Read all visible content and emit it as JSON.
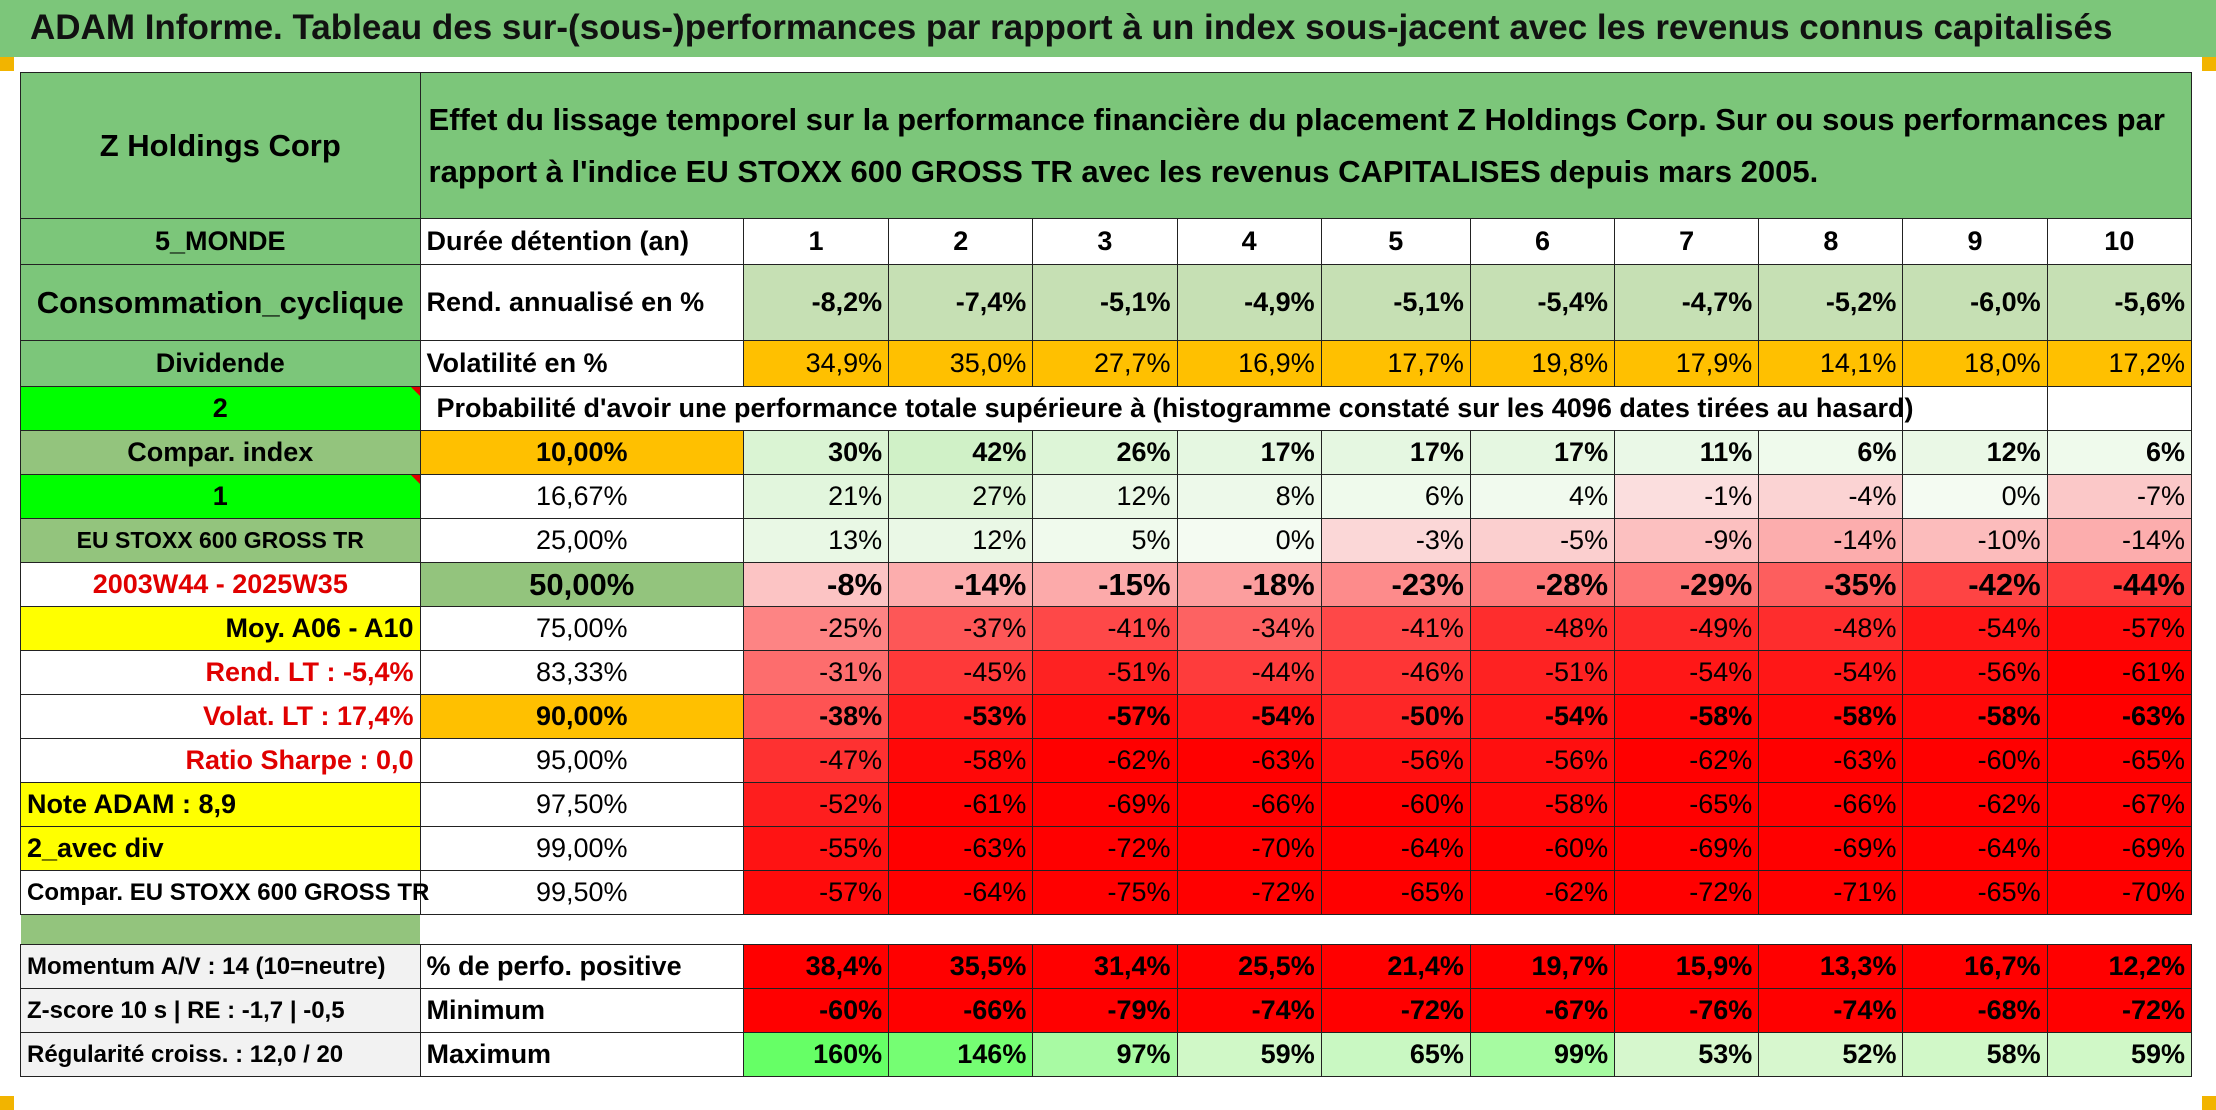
{
  "header": {
    "title": "ADAM Informe. Tableau des sur-(sous-)performances par rapport à un index sous-jacent avec les revenus connus capitalisés"
  },
  "company": "Z Holdings Corp",
  "description": "Effet du lissage temporel sur la performance financière du placement Z Holdings Corp. Sur ou sous performances par rapport à l'indice EU STOXX 600 GROSS TR avec les revenus CAPITALISES depuis mars 2005.",
  "left": {
    "region": "5_MONDE",
    "sector": "Consommation_cyclique",
    "dividend": "Dividende",
    "two": "2",
    "compar_index": "Compar. index",
    "one": "1",
    "index_name": "EU STOXX 600 GROSS TR",
    "period": "2003W44 - 2025W35",
    "moy": "Moy. A06 - A10",
    "rend_lt": "Rend. LT :   -5,4%",
    "volat_lt": "Volat. LT :   17,4%",
    "sharpe": "Ratio Sharpe :    0,0",
    "note": "Note ADAM : 8,9",
    "avec_div": "2_avec div",
    "compar_long": "Compar. EU STOXX 600 GROSS TR",
    "momentum": "Momentum A/V : 14 (10=neutre)",
    "zscore": "Z-score 10 s | RE : -1,7 | -0,5",
    "regularite": "Régularité croiss. : 12,0 / 20"
  },
  "labels": {
    "duree": "Durée détention (an)",
    "rend": "Rend. annualisé en %",
    "volat": "Volatilité en %",
    "proba": "Probabilité d'avoir une performance totale supérieure à (histogramme constaté sur les 4096 dates tirées au hasard)",
    "pos": "% de perfo. positive",
    "min": "Minimum",
    "max": "Maximum"
  },
  "years": [
    "1",
    "2",
    "3",
    "4",
    "5",
    "6",
    "7",
    "8",
    "9",
    "10"
  ],
  "rend": [
    "-8,2%",
    "-7,4%",
    "-5,1%",
    "-4,9%",
    "-5,1%",
    "-5,4%",
    "-4,7%",
    "-5,2%",
    "-6,0%",
    "-5,6%"
  ],
  "volat": [
    "34,9%",
    "35,0%",
    "27,7%",
    "16,9%",
    "17,7%",
    "19,8%",
    "17,9%",
    "14,1%",
    "18,0%",
    "17,2%"
  ],
  "percentile_rows": [
    {
      "label": "10,00%",
      "values": [
        "30%",
        "42%",
        "26%",
        "17%",
        "17%",
        "17%",
        "11%",
        "6%",
        "12%",
        "6%"
      ]
    },
    {
      "label": "16,67%",
      "values": [
        "21%",
        "27%",
        "12%",
        "8%",
        "6%",
        "4%",
        "-1%",
        "-4%",
        "0%",
        "-7%"
      ]
    },
    {
      "label": "25,00%",
      "values": [
        "13%",
        "12%",
        "5%",
        "0%",
        "-3%",
        "-5%",
        "-9%",
        "-14%",
        "-10%",
        "-14%"
      ]
    },
    {
      "label": "50,00%",
      "values": [
        "-8%",
        "-14%",
        "-15%",
        "-18%",
        "-23%",
        "-28%",
        "-29%",
        "-35%",
        "-42%",
        "-44%"
      ]
    },
    {
      "label": "75,00%",
      "values": [
        "-25%",
        "-37%",
        "-41%",
        "-34%",
        "-41%",
        "-48%",
        "-49%",
        "-48%",
        "-54%",
        "-57%"
      ]
    },
    {
      "label": "83,33%",
      "values": [
        "-31%",
        "-45%",
        "-51%",
        "-44%",
        "-46%",
        "-51%",
        "-54%",
        "-54%",
        "-56%",
        "-61%"
      ]
    },
    {
      "label": "90,00%",
      "values": [
        "-38%",
        "-53%",
        "-57%",
        "-54%",
        "-50%",
        "-54%",
        "-58%",
        "-58%",
        "-58%",
        "-63%"
      ]
    },
    {
      "label": "95,00%",
      "values": [
        "-47%",
        "-58%",
        "-62%",
        "-63%",
        "-56%",
        "-56%",
        "-62%",
        "-63%",
        "-60%",
        "-65%"
      ]
    },
    {
      "label": "97,50%",
      "values": [
        "-52%",
        "-61%",
        "-69%",
        "-66%",
        "-60%",
        "-58%",
        "-65%",
        "-66%",
        "-62%",
        "-67%"
      ]
    },
    {
      "label": "99,00%",
      "values": [
        "-55%",
        "-63%",
        "-72%",
        "-70%",
        "-64%",
        "-60%",
        "-69%",
        "-69%",
        "-64%",
        "-69%"
      ]
    },
    {
      "label": "99,50%",
      "values": [
        "-57%",
        "-64%",
        "-75%",
        "-72%",
        "-65%",
        "-62%",
        "-72%",
        "-71%",
        "-65%",
        "-70%"
      ]
    }
  ],
  "pos": [
    "38,4%",
    "35,5%",
    "31,4%",
    "25,5%",
    "21,4%",
    "19,7%",
    "15,9%",
    "13,3%",
    "16,7%",
    "12,2%"
  ],
  "min": [
    "-60%",
    "-66%",
    "-79%",
    "-74%",
    "-72%",
    "-67%",
    "-76%",
    "-74%",
    "-68%",
    "-72%"
  ],
  "max": [
    "160%",
    "146%",
    "97%",
    "59%",
    "65%",
    "99%",
    "53%",
    "52%",
    "58%",
    "59%"
  ]
}
